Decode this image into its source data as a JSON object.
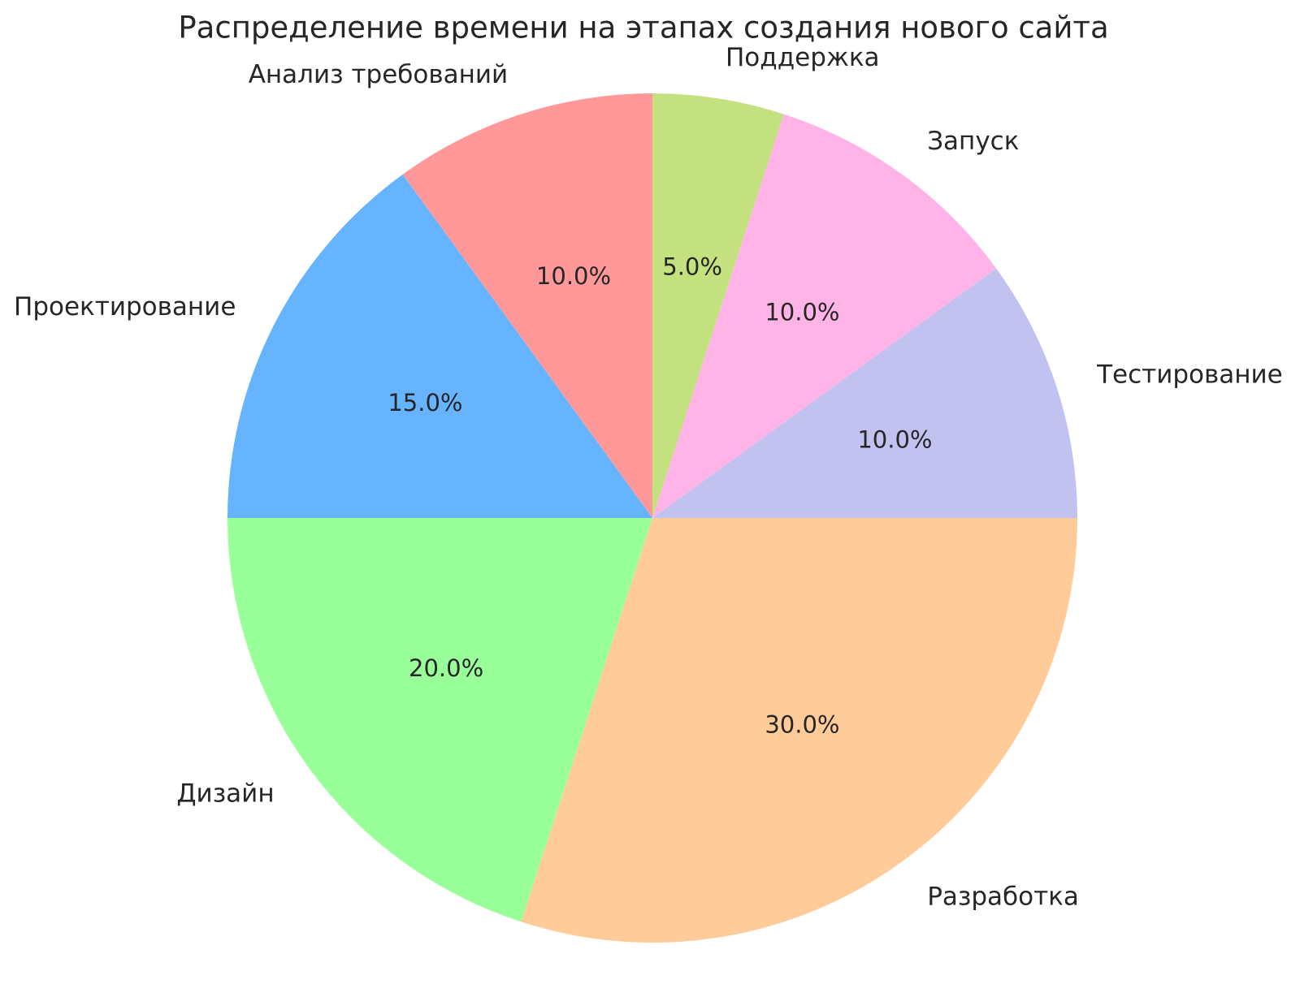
{
  "figure": {
    "background_color": "#ffffff",
    "text_color": "#262626"
  },
  "chart_data": {
    "type": "pie",
    "title": "Распределение времени на этапах создания нового сайта",
    "labels": [
      "Анализ требований",
      "Проектирование",
      "Дизайн",
      "Разработка",
      "Тестирование",
      "Запуск",
      "Поддержка"
    ],
    "values": [
      10,
      15,
      20,
      30,
      10,
      10,
      5
    ],
    "percent_labels": [
      "10.0%",
      "15.0%",
      "20.0%",
      "30.0%",
      "10.0%",
      "10.0%",
      "5.0%"
    ],
    "colors": [
      "#ff9999",
      "#66b3ff",
      "#99ff99",
      "#ffcc99",
      "#c2c2f0",
      "#ffb3e6",
      "#c4e17f"
    ],
    "start_angle_deg": 90,
    "direction": "counterclockwise",
    "label_distance": 1.1,
    "pct_distance": 0.6,
    "legend": "none",
    "grid": "off"
  }
}
